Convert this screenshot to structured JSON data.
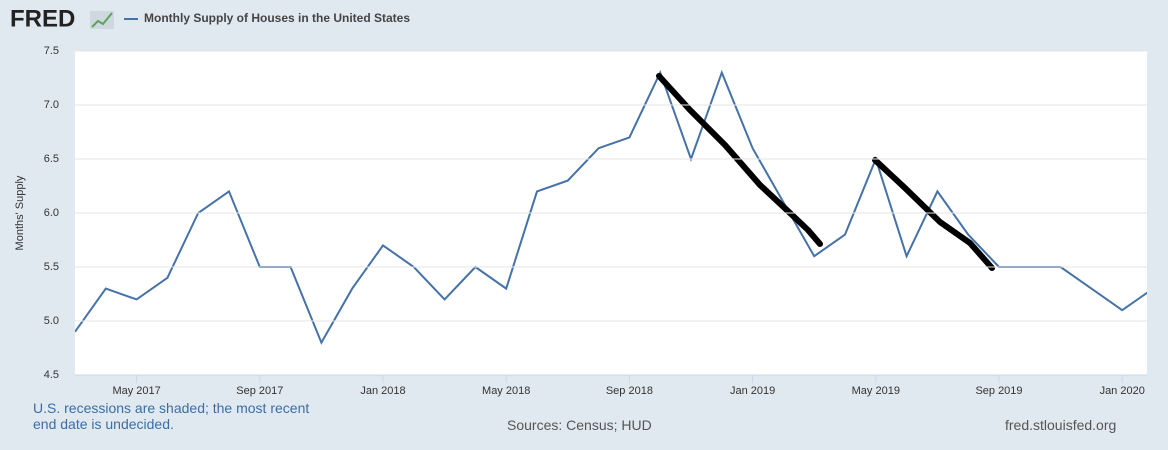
{
  "logo": "FRED",
  "chart_data": {
    "type": "line",
    "x": [
      "2017-03",
      "2017-04",
      "2017-05",
      "2017-06",
      "2017-07",
      "2017-08",
      "2017-09",
      "2017-10",
      "2017-11",
      "2017-12",
      "2018-01",
      "2018-02",
      "2018-03",
      "2018-04",
      "2018-05",
      "2018-06",
      "2018-07",
      "2018-08",
      "2018-09",
      "2018-10",
      "2018-11",
      "2018-12",
      "2019-01",
      "2019-02",
      "2019-03",
      "2019-04",
      "2019-05",
      "2019-06",
      "2019-07",
      "2019-08",
      "2019-09",
      "2019-10",
      "2019-11",
      "2019-12",
      "2020-01",
      "2020-02"
    ],
    "series": [
      {
        "name": "Monthly Supply of Houses in the United States",
        "color": "#4572a7",
        "values": [
          4.9,
          5.3,
          5.2,
          5.4,
          6.0,
          6.2,
          5.5,
          5.5,
          4.8,
          5.3,
          5.7,
          5.5,
          5.2,
          5.5,
          5.3,
          6.2,
          6.3,
          6.6,
          6.7,
          7.3,
          6.5,
          7.3,
          6.6,
          6.1,
          5.6,
          5.8,
          6.5,
          5.6,
          6.2,
          5.8,
          5.5,
          5.5,
          5.5,
          5.3,
          5.1,
          5.3
        ]
      }
    ],
    "xticks": [
      {
        "value": "2017-05",
        "label": "May 2017"
      },
      {
        "value": "2017-09",
        "label": "Sep 2017"
      },
      {
        "value": "2018-01",
        "label": "Jan 2018"
      },
      {
        "value": "2018-05",
        "label": "May 2018"
      },
      {
        "value": "2018-09",
        "label": "Sep 2018"
      },
      {
        "value": "2019-01",
        "label": "Jan 2019"
      },
      {
        "value": "2019-05",
        "label": "May 2019"
      },
      {
        "value": "2019-09",
        "label": "Sep 2019"
      },
      {
        "value": "2020-01",
        "label": "Jan 2020"
      }
    ],
    "ylim": [
      4.5,
      7.5
    ],
    "yticks": [
      4.5,
      {
        "value": 5,
        "label": "5.0"
      },
      5.5,
      {
        "value": 6,
        "label": "6.0"
      },
      6.5,
      {
        "value": 7,
        "label": "7.0"
      },
      7.5
    ],
    "y_label": "Months' Supply",
    "grid": true,
    "footnote": "U.S. recessions are shaded; the most recent end date is undecided.",
    "source": "Sources: Census; HUD",
    "site": "fred.stlouisfed.org"
  }
}
